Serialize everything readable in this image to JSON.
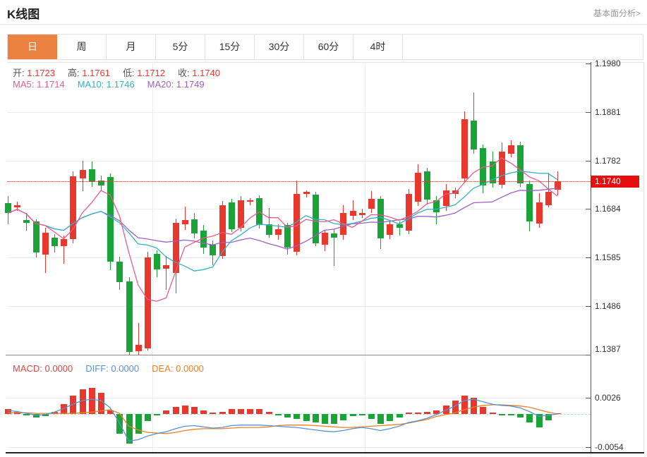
{
  "header": {
    "title": "K线图",
    "link": "基本面分析>"
  },
  "tabs": {
    "active_index": 0,
    "items": [
      {
        "name": "day",
        "label": "日"
      },
      {
        "name": "week",
        "label": "周"
      },
      {
        "name": "month",
        "label": "月"
      },
      {
        "name": "5min",
        "label": "5分"
      },
      {
        "name": "15min",
        "label": "15分"
      },
      {
        "name": "30min",
        "label": "30分"
      },
      {
        "name": "60min",
        "label": "60分"
      },
      {
        "name": "4hour",
        "label": "4时"
      }
    ]
  },
  "info": {
    "ohlc": [
      {
        "name": "open",
        "label": "开:",
        "value": "1.1723"
      },
      {
        "name": "high",
        "label": "高:",
        "value": "1.1761"
      },
      {
        "name": "low",
        "label": "低:",
        "value": "1.1712"
      },
      {
        "name": "close",
        "label": "收:",
        "value": "1.1740"
      }
    ],
    "ma": [
      {
        "name": "ma5",
        "label": "MA5:",
        "value": "1.1714"
      },
      {
        "name": "ma10",
        "label": "MA10:",
        "value": "1.1746"
      },
      {
        "name": "ma20",
        "label": "MA20:",
        "value": "1.1749"
      }
    ],
    "macd": [
      {
        "name": "macd",
        "label": "MACD:",
        "value": "0.0000"
      },
      {
        "name": "diff",
        "label": "DIFF:",
        "value": "0.0000"
      },
      {
        "name": "dea",
        "label": "DEA:",
        "value": "0.0000"
      }
    ]
  },
  "axis": {
    "last_price_label": "1.1740"
  },
  "colors": {
    "up": "#e8372c",
    "down": "#1aa337",
    "ma5": "#e85a8a",
    "ma10": "#2fb3c4",
    "ma20": "#a05fc4",
    "diff": "#5693d6",
    "dea": "#ee8022",
    "value_red": "#e8372c",
    "macd_label": "#dc4840",
    "tab_accent": "#ec8241",
    "badge": "#e60f0f",
    "dotted_line": "#f03a2e",
    "zero_line": "#aadcee"
  },
  "chart_data": {
    "type": "candlestick+macd",
    "title": "K线图",
    "interval": "日",
    "legend": [
      "MA5",
      "MA10",
      "MA20",
      "MACD",
      "DIFF",
      "DEA"
    ],
    "y_ticks": [
      1.198,
      1.1881,
      1.1782,
      1.1684,
      1.1585,
      1.1486,
      1.1387
    ],
    "ylim": [
      1.1387,
      1.198
    ],
    "last_price": 1.174,
    "ohlc_last": {
      "open": 1.1723,
      "high": 1.1761,
      "low": 1.1712,
      "close": 1.174
    },
    "ma_last": {
      "MA5": 1.1714,
      "MA10": 1.1746,
      "MA20": 1.1749
    },
    "macd_last": {
      "MACD": 0.0,
      "DIFF": 0.0,
      "DEA": 0.0
    },
    "sub_ticks": [
      0.0026,
      -0.0054
    ],
    "sub_ylim": [
      -0.0054,
      0.0046
    ],
    "hist_formula": "2*(diff-dea)",
    "candles_ohlc": [
      [
        1.1695,
        1.171,
        1.1652,
        1.1675
      ],
      [
        1.1687,
        1.1699,
        1.168,
        1.1691
      ],
      [
        1.1661,
        1.1676,
        1.164,
        1.1655
      ],
      [
        1.1658,
        1.1663,
        1.1585,
        1.1595
      ],
      [
        1.1592,
        1.1645,
        1.1553,
        1.1636
      ],
      [
        1.1625,
        1.1633,
        1.1595,
        1.1608
      ],
      [
        1.1608,
        1.163,
        1.1572,
        1.1622
      ],
      [
        1.1622,
        1.1761,
        1.1615,
        1.175
      ],
      [
        1.1746,
        1.1782,
        1.172,
        1.1763
      ],
      [
        1.1765,
        1.178,
        1.1728,
        1.1739
      ],
      [
        1.1742,
        1.1752,
        1.1722,
        1.1732
      ],
      [
        1.1749,
        1.1756,
        1.156,
        1.1577
      ],
      [
        1.1577,
        1.1586,
        1.1518,
        1.1536
      ],
      [
        1.1536,
        1.1545,
        1.1387,
        1.1392
      ],
      [
        1.1394,
        1.1452,
        1.1388,
        1.1407
      ],
      [
        1.14,
        1.1596,
        1.1395,
        1.1585
      ],
      [
        1.1592,
        1.16,
        1.1545,
        1.156
      ],
      [
        1.1563,
        1.1588,
        1.1519,
        1.157
      ],
      [
        1.1553,
        1.1664,
        1.1512,
        1.1655
      ],
      [
        1.1652,
        1.1688,
        1.1641,
        1.1661
      ],
      [
        1.1662,
        1.1676,
        1.1624,
        1.1633
      ],
      [
        1.1639,
        1.1651,
        1.1592,
        1.1604
      ],
      [
        1.1611,
        1.162,
        1.157,
        1.1589
      ],
      [
        1.1589,
        1.17,
        1.1582,
        1.1692
      ],
      [
        1.1697,
        1.1704,
        1.1636,
        1.1643
      ],
      [
        1.1646,
        1.171,
        1.1638,
        1.1702
      ],
      [
        1.1698,
        1.1706,
        1.1692,
        1.1701
      ],
      [
        1.1706,
        1.1712,
        1.1645,
        1.1652
      ],
      [
        1.1653,
        1.1685,
        1.1625,
        1.1632
      ],
      [
        1.1631,
        1.1652,
        1.1621,
        1.1643
      ],
      [
        1.1651,
        1.1656,
        1.1592,
        1.1605
      ],
      [
        1.1597,
        1.1742,
        1.159,
        1.1715
      ],
      [
        1.1714,
        1.1722,
        1.1708,
        1.1718
      ],
      [
        1.1713,
        1.1719,
        1.1608,
        1.1614
      ],
      [
        1.1611,
        1.164,
        1.1599,
        1.1636
      ],
      [
        1.1634,
        1.1642,
        1.1567,
        1.1626
      ],
      [
        1.1631,
        1.1692,
        1.1622,
        1.1675
      ],
      [
        1.167,
        1.1702,
        1.1662,
        1.168
      ],
      [
        1.1672,
        1.1684,
        1.1665,
        1.1676
      ],
      [
        1.1684,
        1.172,
        1.1676,
        1.1704
      ],
      [
        1.1704,
        1.171,
        1.1602,
        1.1624
      ],
      [
        1.1631,
        1.166,
        1.1622,
        1.1653
      ],
      [
        1.1653,
        1.1658,
        1.163,
        1.1646
      ],
      [
        1.164,
        1.1724,
        1.1632,
        1.1714
      ],
      [
        1.1698,
        1.1775,
        1.169,
        1.1757
      ],
      [
        1.176,
        1.1768,
        1.1694,
        1.1702
      ],
      [
        1.1702,
        1.171,
        1.1652,
        1.1677
      ],
      [
        1.169,
        1.1734,
        1.168,
        1.1721
      ],
      [
        1.1714,
        1.1728,
        1.1706,
        1.1721
      ],
      [
        1.1746,
        1.1882,
        1.174,
        1.1866
      ],
      [
        1.1863,
        1.1921,
        1.1796,
        1.1804
      ],
      [
        1.1807,
        1.1815,
        1.1716,
        1.1731
      ],
      [
        1.178,
        1.18,
        1.1727,
        1.1736
      ],
      [
        1.1734,
        1.1819,
        1.1726,
        1.1801
      ],
      [
        1.1797,
        1.1824,
        1.179,
        1.1814
      ],
      [
        1.1814,
        1.182,
        1.1728,
        1.1736
      ],
      [
        1.1734,
        1.1742,
        1.1639,
        1.1658
      ],
      [
        1.1654,
        1.1716,
        1.1646,
        1.1697
      ],
      [
        1.1692,
        1.1757,
        1.1687,
        1.1719
      ],
      [
        1.1723,
        1.1761,
        1.1712,
        1.174
      ]
    ],
    "diff": [
      0.0006,
      0.0004,
      0.0001,
      -0.0002,
      -0.0001,
      0.0003,
      0.0009,
      0.0016,
      0.0022,
      0.0024,
      0.0022,
      0.001,
      -0.0015,
      -0.0044,
      -0.0042,
      -0.0036,
      -0.0032,
      -0.0029,
      -0.0024,
      -0.002,
      -0.0019,
      -0.0021,
      -0.0023,
      -0.0022,
      -0.0019,
      -0.0018,
      -0.0018,
      -0.0018,
      -0.0019,
      -0.002,
      -0.0021,
      -0.0022,
      -0.0024,
      -0.0026,
      -0.0028,
      -0.0029,
      -0.0027,
      -0.0024,
      -0.0022,
      -0.0024,
      -0.0027,
      -0.0024,
      -0.002,
      -0.0014,
      -0.0011,
      -0.0007,
      -0.0001,
      0.0006,
      0.0013,
      0.0022,
      0.0024,
      0.002,
      0.0016,
      0.0014,
      0.0013,
      0.001,
      0.0004,
      -0.0004,
      -0.0002,
      0.0
    ],
    "dea": [
      0.0002,
      0.0002,
      0.0002,
      0.0001,
      0.0001,
      0.0001,
      0.0001,
      0.0001,
      0.0002,
      0.0003,
      0.0005,
      0.0007,
      0.0001,
      -0.002,
      -0.0026,
      -0.003,
      -0.0031,
      -0.0032,
      -0.003,
      -0.0027,
      -0.0025,
      -0.0024,
      -0.0024,
      -0.0024,
      -0.0023,
      -0.0022,
      -0.0022,
      -0.0022,
      -0.0021,
      -0.0019,
      -0.0018,
      -0.0018,
      -0.0018,
      -0.0019,
      -0.002,
      -0.0021,
      -0.0022,
      -0.0022,
      -0.0021,
      -0.002,
      -0.0019,
      -0.0018,
      -0.0017,
      -0.0015,
      -0.0012,
      -0.0009,
      -0.0004,
      -0.0001,
      0.0002,
      0.0007,
      0.0011,
      0.0014,
      0.0015,
      0.0015,
      0.0014,
      0.0013,
      0.0011,
      0.0007,
      0.0003,
      0.0
    ]
  }
}
